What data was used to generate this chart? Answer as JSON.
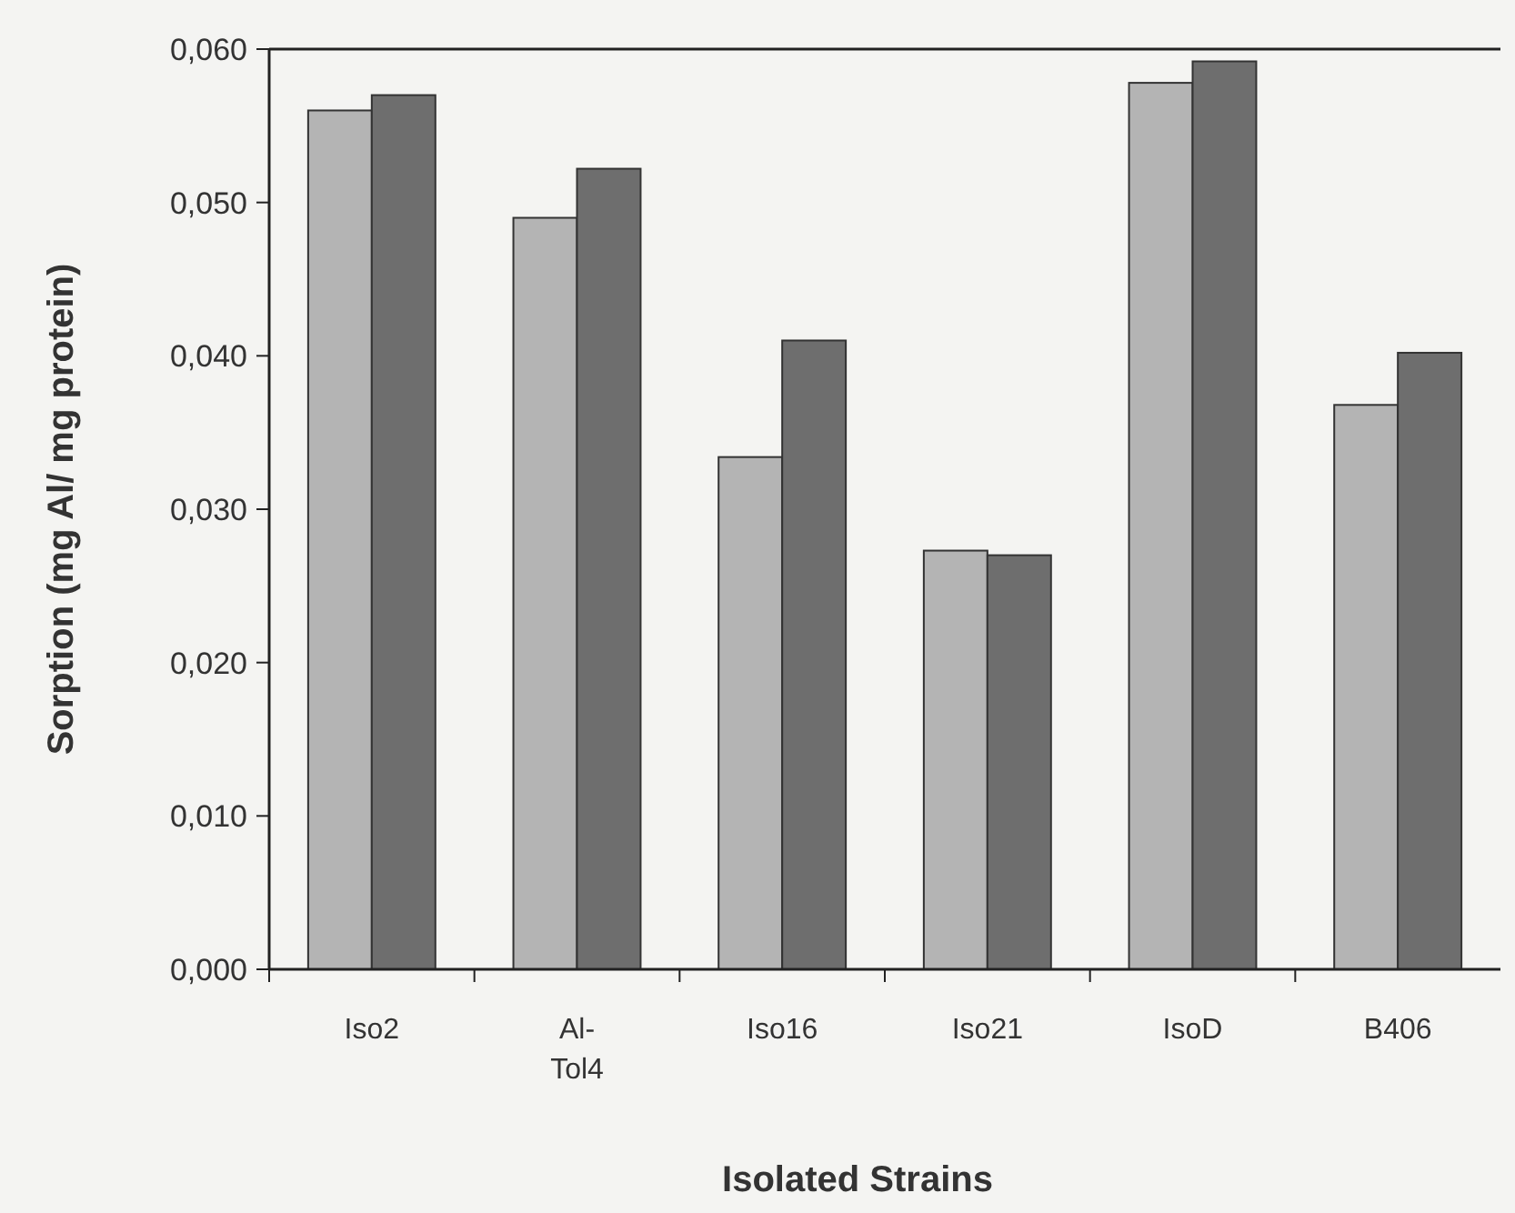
{
  "chart_data": {
    "type": "bar",
    "xlabel": "Isolated Strains",
    "ylabel": "Sorption (mg Al/ mg protein)",
    "categories": [
      "Iso2",
      "Al-Tol4",
      "Iso16",
      "Iso21",
      "IsoD",
      "B406"
    ],
    "series": [
      {
        "color": "#b4b4b4",
        "values": [
          0.056,
          0.049,
          0.0334,
          0.0273,
          0.0578,
          0.0368
        ]
      },
      {
        "color": "#6e6e6e",
        "values": [
          0.057,
          0.0522,
          0.041,
          0.027,
          0.0592,
          0.0402
        ]
      }
    ],
    "ylim": [
      0,
      0.06
    ],
    "yticks": [
      {
        "value": 0,
        "label": "0,000"
      },
      {
        "value": 0.01,
        "label": "0,010"
      },
      {
        "value": 0.02,
        "label": "0,020"
      },
      {
        "value": 0.03,
        "label": "0,030"
      },
      {
        "value": 0.04,
        "label": "0,040"
      },
      {
        "value": 0.05,
        "label": "0,050"
      },
      {
        "value": 0.06,
        "label": "0,060"
      }
    ],
    "grid": false
  }
}
